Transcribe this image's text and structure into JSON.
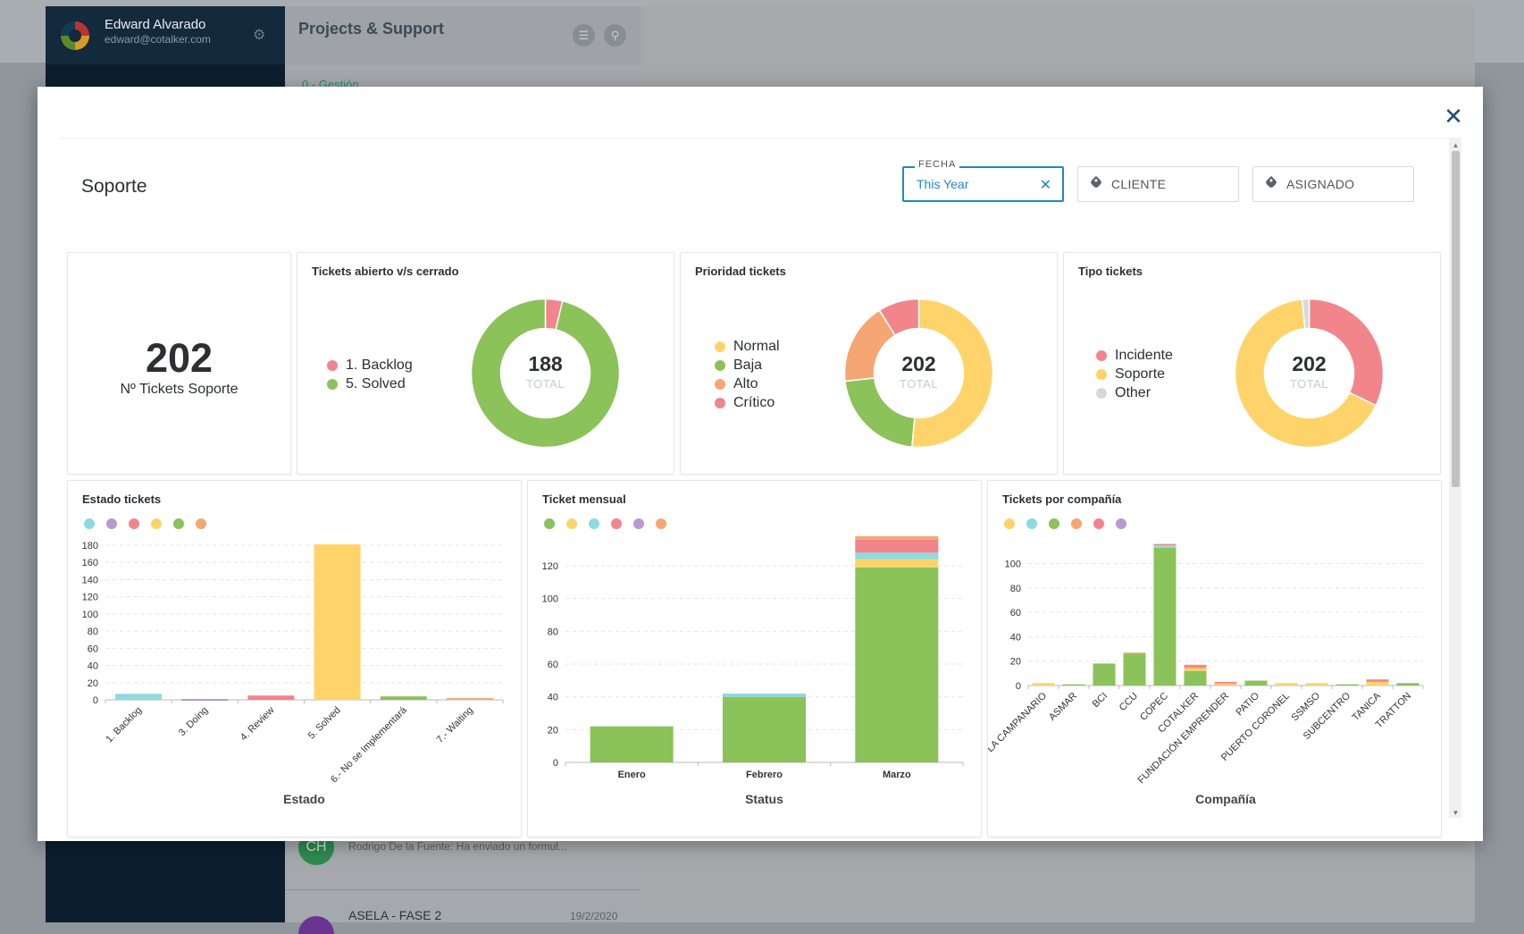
{
  "background": {
    "user_name": "Edward Alvarado",
    "user_email": "edward@cotalker.com",
    "panel_title": "Projects & Support",
    "channel_label": "0 - Gestión",
    "chat_avatar_initials": "CH",
    "chat_message": "Rodrigo De la Fuente: Ha enviado un formul...",
    "chat_item_title": "ASELA - FASE 2",
    "chat_item_date": "19/2/2020"
  },
  "modal": {
    "title": "Soporte",
    "filters": {
      "fecha_label": "FECHA",
      "fecha_value": "This Year",
      "cliente_label": "CLIENTE",
      "asignado_label": "ASIGNADO"
    },
    "kpi": {
      "value": "202",
      "label": "Nº Tickets Soporte"
    },
    "colors": {
      "green": "#8bc25a",
      "red": "#f2858c",
      "yellow": "#fed46a",
      "orange": "#f6a672",
      "cyan": "#8fd9e0",
      "purple": "#b69ad0",
      "grey": "#d6d9dc"
    },
    "donut_open_closed": {
      "title": "Tickets abierto v/s cerrado",
      "total": "188",
      "total_label": "TOTAL",
      "legend": [
        "1. Backlog",
        "5. Solved"
      ]
    },
    "donut_priority": {
      "title": "Prioridad tickets",
      "total": "202",
      "total_label": "TOTAL",
      "legend": [
        "Normal",
        "Baja",
        "Alto",
        "Crítico"
      ]
    },
    "donut_type": {
      "title": "Tipo tickets",
      "total": "202",
      "total_label": "TOTAL",
      "legend": [
        "Incidente",
        "Soporte",
        "Other"
      ]
    },
    "estado_title": "Estado tickets",
    "mensual_title": "Ticket mensual",
    "compania_title": "Tickets por compañía"
  },
  "chart_data": [
    {
      "type": "pie",
      "title": "Tickets abierto v/s cerrado",
      "categories": [
        "1. Backlog",
        "5. Solved"
      ],
      "values": [
        7,
        181
      ],
      "colors": [
        "#f2858c",
        "#8bc25a"
      ]
    },
    {
      "type": "pie",
      "title": "Prioridad tickets",
      "categories": [
        "Normal",
        "Baja",
        "Alto",
        "Crítico"
      ],
      "values": [
        104,
        44,
        36,
        18
      ],
      "colors": [
        "#fed46a",
        "#8bc25a",
        "#f6a672",
        "#f2858c"
      ]
    },
    {
      "type": "pie",
      "title": "Tipo tickets",
      "categories": [
        "Incidente",
        "Soporte",
        "Other"
      ],
      "values": [
        65,
        134,
        3
      ],
      "colors": [
        "#f2858c",
        "#fed46a",
        "#d6d9dc"
      ]
    },
    {
      "type": "bar",
      "title": "Estado tickets",
      "xlabel": "Estado",
      "ylim": [
        0,
        180
      ],
      "yticks": [
        0,
        20,
        40,
        60,
        80,
        100,
        120,
        140,
        160,
        180
      ],
      "categories": [
        "1. Backlog",
        "3. Doing",
        "4. Review",
        "5. Solved",
        "6.- No se Implementará",
        "7.- Waiting"
      ],
      "values": [
        7,
        1,
        5,
        181,
        4,
        2
      ],
      "colors": [
        "#8fd9e0",
        "#b69ad0",
        "#f2858c",
        "#fed46a",
        "#8bc25a",
        "#f6a672"
      ]
    },
    {
      "type": "bar",
      "title": "Ticket mensual",
      "xlabel": "Status",
      "ylim": [
        0,
        138
      ],
      "yticks": [
        0,
        20,
        40,
        60,
        80,
        100,
        120
      ],
      "categories": [
        "Enero",
        "Febrero",
        "Marzo"
      ],
      "legend_colors": [
        "#8bc25a",
        "#fed46a",
        "#8fd9e0",
        "#f2858c",
        "#b69ad0",
        "#f6a672"
      ],
      "series": [
        {
          "color": "#8bc25a",
          "values": [
            22,
            40,
            119
          ]
        },
        {
          "color": "#fed46a",
          "values": [
            0,
            0,
            5
          ]
        },
        {
          "color": "#8fd9e0",
          "values": [
            0,
            2,
            4
          ]
        },
        {
          "color": "#f2858c",
          "values": [
            0,
            0,
            8
          ]
        },
        {
          "color": "#b69ad0",
          "values": [
            0,
            0,
            0
          ]
        },
        {
          "color": "#f6a672",
          "values": [
            0,
            0,
            2
          ]
        }
      ]
    },
    {
      "type": "bar",
      "title": "Tickets por compañía",
      "xlabel": "Compañía",
      "ylim": [
        0,
        115
      ],
      "yticks": [
        0,
        20,
        40,
        60,
        80,
        100
      ],
      "categories": [
        "LA CAMPANARIO",
        "ASMAR",
        "BCI",
        "CCU",
        "COPEC",
        "COTALKER",
        "FUNDACIÓN EMPRENDER",
        "PATIO",
        "PUERTO CORONEL",
        "SSMSO",
        "SUBCENTRO",
        "TANICA",
        "TRATTON"
      ],
      "legend_colors": [
        "#fed46a",
        "#8fd9e0",
        "#8bc25a",
        "#f6a672",
        "#f2858c",
        "#b69ad0"
      ],
      "series": [
        {
          "color": "#8bc25a",
          "values": [
            0,
            1,
            18,
            26,
            113,
            12,
            0,
            4,
            0,
            0,
            1,
            0,
            2
          ]
        },
        {
          "color": "#fed46a",
          "values": [
            2,
            0,
            0,
            0,
            0,
            2,
            1,
            0,
            2,
            2,
            0,
            3,
            0
          ]
        },
        {
          "color": "#8fd9e0",
          "values": [
            0,
            0,
            0,
            0,
            2,
            0,
            0,
            0,
            0,
            0,
            0,
            0,
            0
          ]
        },
        {
          "color": "#f6a672",
          "values": [
            0,
            0,
            0,
            1,
            0,
            1,
            1,
            0,
            0,
            0,
            0,
            0,
            0
          ]
        },
        {
          "color": "#f2858c",
          "values": [
            0,
            0,
            0,
            0,
            1,
            2,
            1,
            0,
            0,
            0,
            0,
            2,
            0
          ]
        }
      ]
    }
  ]
}
